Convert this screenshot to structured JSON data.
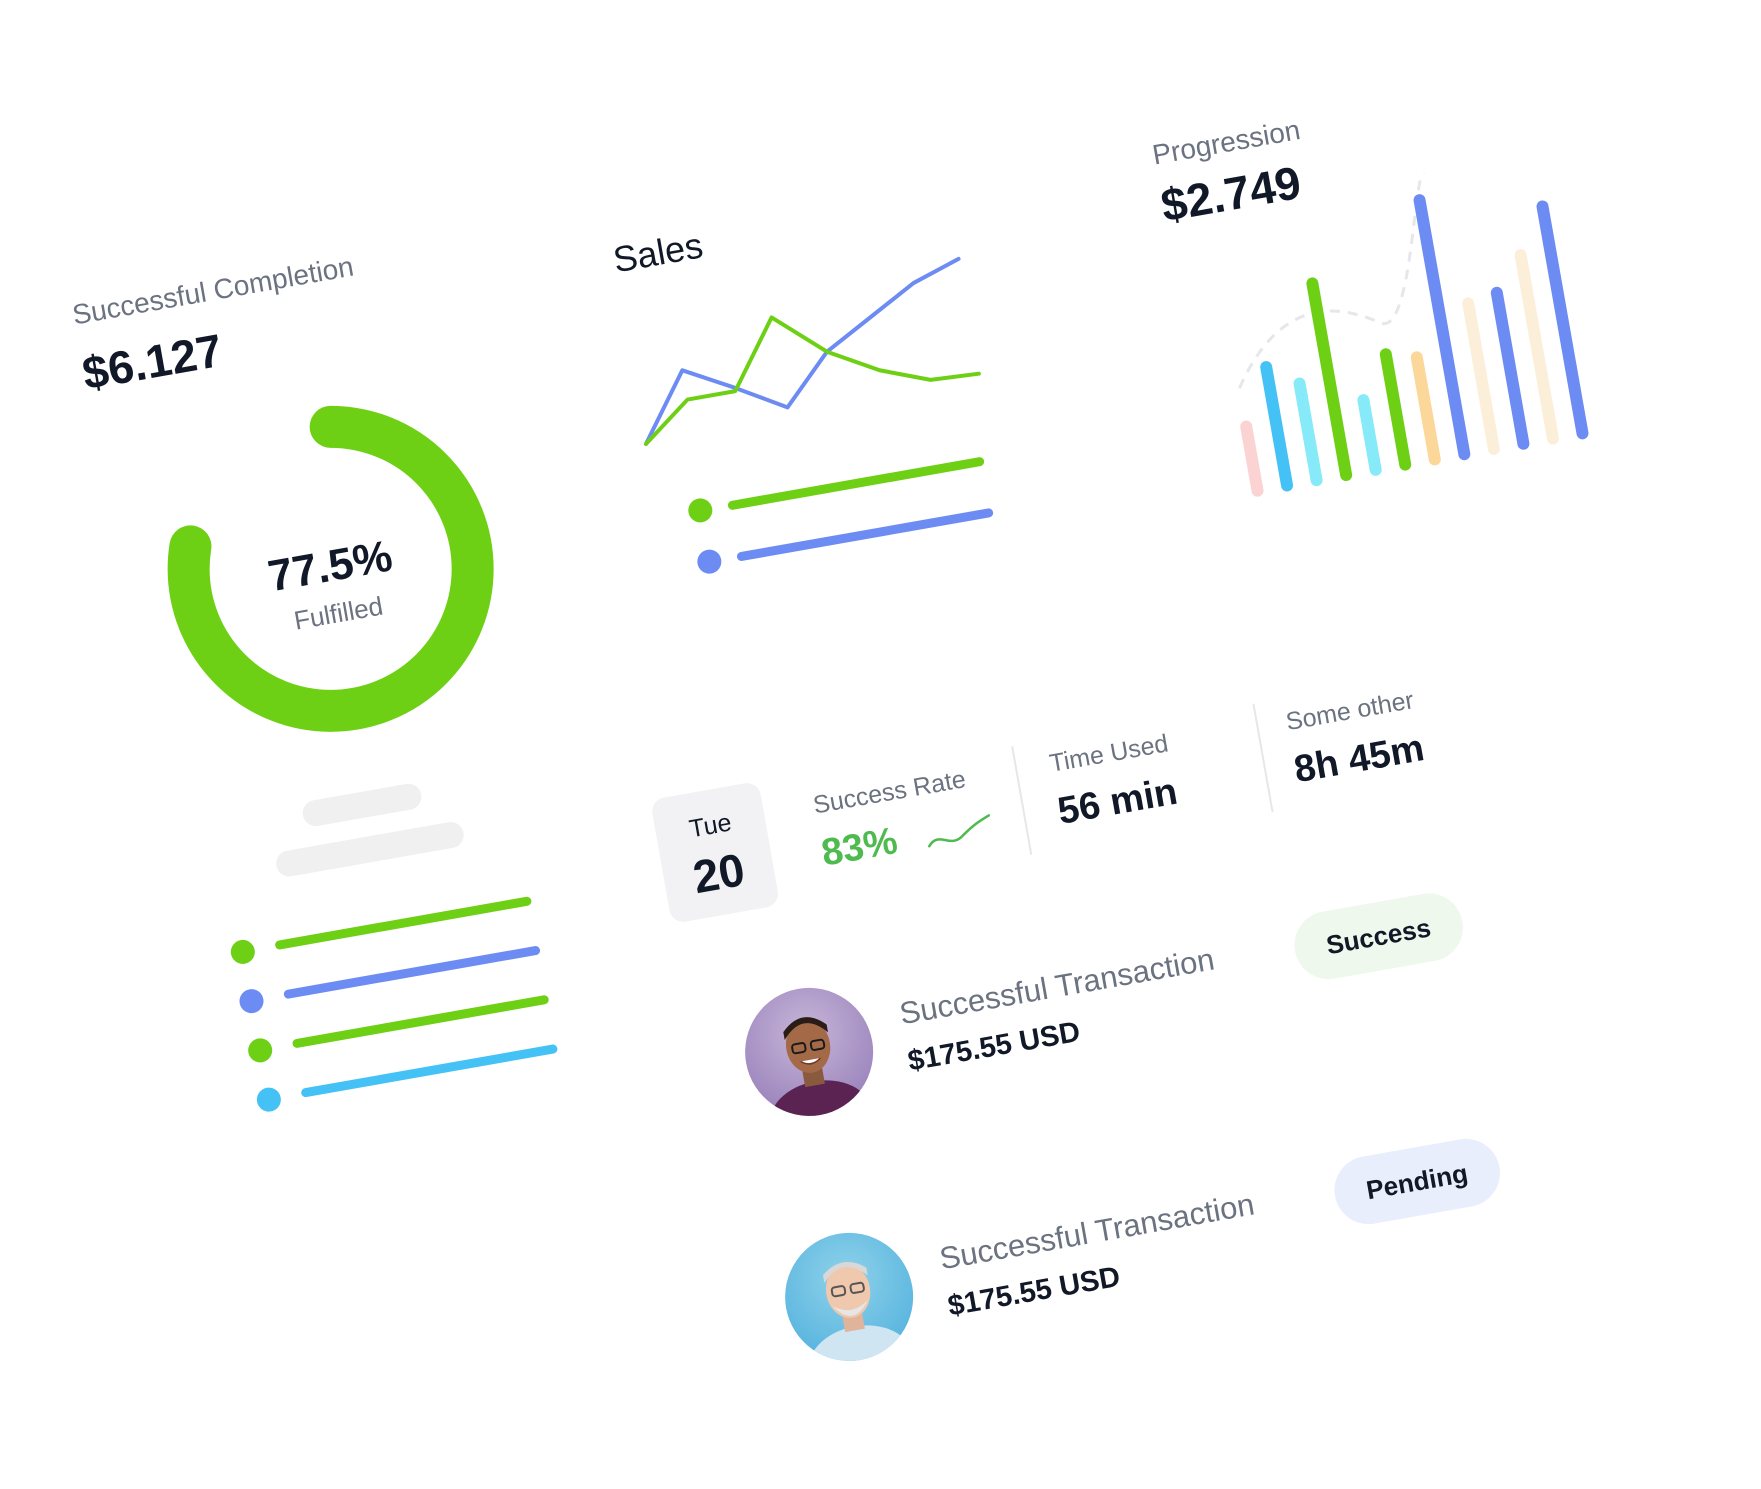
{
  "completion": {
    "label": "Successful Completion",
    "value": "$6.127",
    "percent_text": "77.5%",
    "percent_value": 77.5,
    "sub_label": "Fulfilled"
  },
  "sales": {
    "title": "Sales"
  },
  "progression": {
    "label": "Progression",
    "value": "$2.749"
  },
  "stats": {
    "date_day": "Tue",
    "date_num": "20",
    "success_rate_label": "Success Rate",
    "success_rate_value": "83%",
    "time_used_label": "Time Used",
    "time_used_value": "56 min",
    "other_label": "Some other",
    "other_value": "8h 45m"
  },
  "transactions": [
    {
      "title": "Successful Transaction",
      "amount": "$175.55 USD",
      "status": "Success"
    },
    {
      "title": "Successful Transaction",
      "amount": "$175.55 USD",
      "status": "Pending"
    }
  ],
  "colors": {
    "green": "#6ed014",
    "blue": "#6c8cf4",
    "cyan": "#45c2f5",
    "light_cyan": "#86eaf8",
    "pink": "#fcd3d3",
    "orange": "#fcd79a",
    "cream": "#fcefd9",
    "success_badge_bg": "#eff8ec",
    "pending_badge_bg": "#e8eefc",
    "success_text": "#4fba4f"
  },
  "chart_data": [
    {
      "type": "line",
      "title": "Sales",
      "x": [
        0,
        1,
        2,
        3,
        4,
        5,
        6,
        7
      ],
      "series": [
        {
          "color": "#6c8cf4",
          "values": [
            20,
            78,
            55,
            30,
            72,
            95,
            118,
            132
          ]
        },
        {
          "color": "#6ed014",
          "values": [
            20,
            52,
            52,
            110,
            72,
            48,
            32,
            30
          ]
        }
      ],
      "ylim": [
        0,
        140
      ]
    },
    {
      "type": "bar",
      "title": "Progression",
      "categories": [
        "1",
        "2",
        "3",
        "4",
        "5",
        "6",
        "7",
        "8",
        "9",
        "10",
        "11",
        "12"
      ],
      "series": [
        {
          "values": [
            28,
            48,
            40,
            75,
            30,
            45,
            42,
            98,
            58,
            60,
            72,
            88
          ]
        }
      ],
      "bar_colors": [
        "#fcd3d3",
        "#45c2f5",
        "#86eaf8",
        "#6ed014",
        "#86eaf8",
        "#6ed014",
        "#fcd79a",
        "#6c8cf4",
        "#fcefd9",
        "#6c8cf4",
        "#fcefd9",
        "#6c8cf4"
      ]
    }
  ]
}
